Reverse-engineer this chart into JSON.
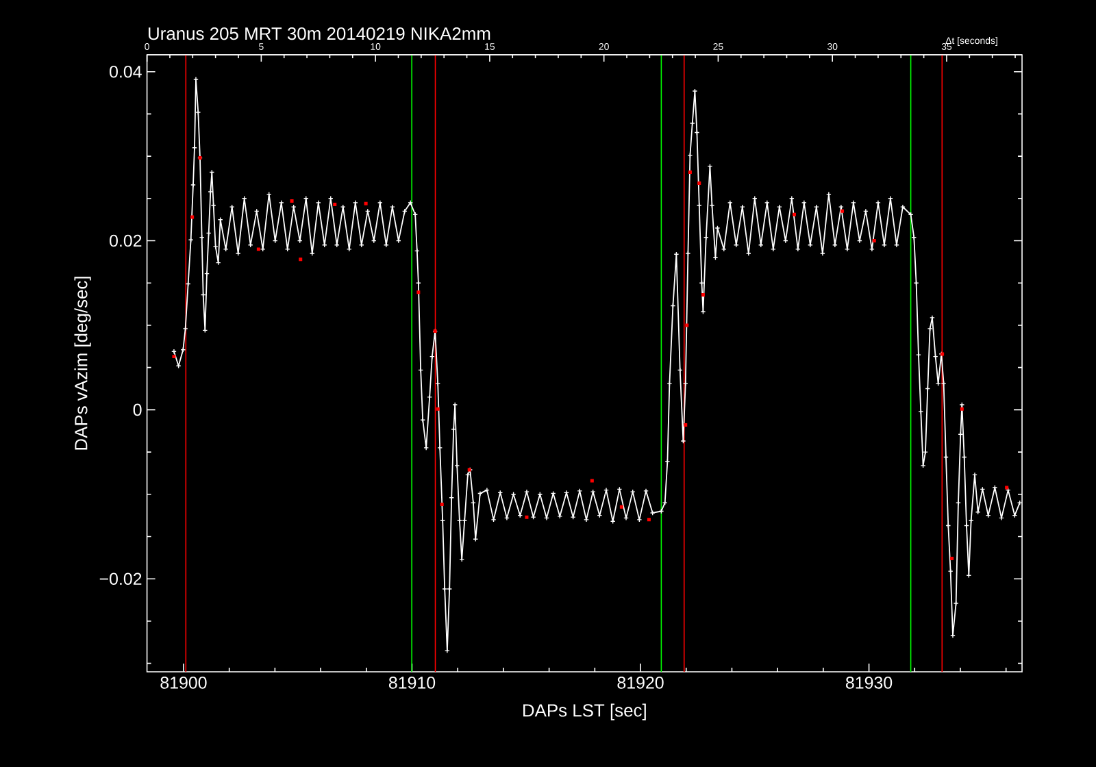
{
  "chart_data": {
    "type": "line",
    "title": "Uranus 205 MRT 30m 20140219 NIKA2mm",
    "xlabel": "DAPs LST [sec]",
    "ylabel": "DAPs vAzim [deg/sec]",
    "x2label": "Δt [seconds]",
    "xlim": [
      81898.4,
      81936.7
    ],
    "xticks": [
      {
        "value": 81900,
        "label": "81900"
      },
      {
        "value": 81902,
        "label": null
      },
      {
        "value": 81904,
        "label": null
      },
      {
        "value": 81906,
        "label": null
      },
      {
        "value": 81908,
        "label": null
      },
      81910,
      {
        "value": 81912,
        "label": null
      },
      {
        "value": 81914,
        "label": null
      },
      {
        "value": 81916,
        "label": null
      },
      {
        "value": 81918,
        "label": null
      },
      81920,
      {
        "value": 81922,
        "label": null
      },
      {
        "value": 81924,
        "label": null
      },
      {
        "value": 81926,
        "label": null
      },
      {
        "value": 81928,
        "label": null
      },
      81930,
      {
        "value": 81932,
        "label": null
      },
      {
        "value": 81934,
        "label": null
      },
      {
        "value": 81936,
        "label": null
      }
    ],
    "ylim": [
      -0.031,
      0.042
    ],
    "yticks": [
      {
        "value": -0.03,
        "label": null
      },
      {
        "value": -0.025,
        "label": null
      },
      {
        "value": -0.02,
        "label": "−0.02"
      },
      {
        "value": -0.015,
        "label": null
      },
      {
        "value": -0.01,
        "label": null
      },
      {
        "value": -0.005,
        "label": null
      },
      0,
      {
        "value": 0.005,
        "label": null
      },
      {
        "value": 0.01,
        "label": null
      },
      {
        "value": 0.015,
        "label": null
      },
      0.02,
      {
        "value": 0.025,
        "label": null
      },
      {
        "value": 0.03,
        "label": null
      },
      {
        "value": 0.035,
        "label": null
      },
      0.04
    ],
    "x2lim": [
      0,
      38.3
    ],
    "x2ticks": [
      0,
      {
        "value": 1,
        "label": null
      },
      {
        "value": 2,
        "label": null
      },
      {
        "value": 3,
        "label": null
      },
      {
        "value": 4,
        "label": null
      },
      5,
      {
        "value": 6,
        "label": null
      },
      {
        "value": 7,
        "label": null
      },
      {
        "value": 8,
        "label": null
      },
      {
        "value": 9,
        "label": null
      },
      10,
      {
        "value": 11,
        "label": null
      },
      {
        "value": 12,
        "label": null
      },
      {
        "value": 13,
        "label": null
      },
      {
        "value": 14,
        "label": null
      },
      15,
      {
        "value": 16,
        "label": null
      },
      {
        "value": 17,
        "label": null
      },
      {
        "value": 18,
        "label": null
      },
      {
        "value": 19,
        "label": null
      },
      20,
      {
        "value": 21,
        "label": null
      },
      {
        "value": 22,
        "label": null
      },
      {
        "value": 23,
        "label": null
      },
      {
        "value": 24,
        "label": null
      },
      25,
      {
        "value": 26,
        "label": null
      },
      {
        "value": 27,
        "label": null
      },
      {
        "value": 28,
        "label": null
      },
      {
        "value": 29,
        "label": null
      },
      30,
      {
        "value": 31,
        "label": null
      },
      {
        "value": 32,
        "label": null
      },
      {
        "value": 33,
        "label": null
      },
      {
        "value": 34,
        "label": null
      },
      35,
      {
        "value": 36,
        "label": null
      },
      {
        "value": 37,
        "label": null
      },
      {
        "value": 38,
        "label": null
      }
    ],
    "ref_lines": [
      {
        "axis": "x",
        "value": 81900.1,
        "color": "#ff0000"
      },
      {
        "axis": "x",
        "value": 81911.02,
        "color": "#ff0000"
      },
      {
        "axis": "x",
        "value": 81921.91,
        "color": "#ff0000"
      },
      {
        "axis": "x",
        "value": 81933.2,
        "color": "#ff0000"
      },
      {
        "axis": "x",
        "value": 81909.99,
        "color": "#00ff00"
      },
      {
        "axis": "x",
        "value": 81920.91,
        "color": "#00ff00"
      },
      {
        "axis": "x",
        "value": 81931.83,
        "color": "#00ff00"
      }
    ],
    "series": [
      {
        "color": "#ffffff",
        "marker": "cross",
        "x": [
          81899.58,
          81899.78,
          81899.98,
          81900.08,
          81900.2,
          81900.32,
          81900.42,
          81900.48,
          81900.54,
          81900.64,
          81900.72,
          81900.8,
          81900.86,
          81900.94,
          81901.02,
          81901.1,
          81901.18,
          81901.24,
          81901.31,
          81901.4,
          81901.52,
          81901.61,
          81901.85,
          81902.12,
          81902.39,
          81902.66,
          81902.93,
          81903.2,
          81903.47,
          81903.74,
          81904.01,
          81904.28,
          81904.55,
          81904.82,
          81905.09,
          81905.36,
          81905.63,
          81905.9,
          81906.17,
          81906.44,
          81906.71,
          81906.98,
          81907.25,
          81907.52,
          81907.79,
          81908.06,
          81908.33,
          81908.6,
          81908.87,
          81909.14,
          81909.41,
          81909.68,
          81909.93,
          81910.14,
          81910.22,
          81910.28,
          81910.38,
          81910.47,
          81910.62,
          81910.77,
          81910.88,
          81911.01,
          81911.13,
          81911.22,
          81911.34,
          81911.43,
          81911.54,
          81911.64,
          81911.73,
          81911.82,
          81911.88,
          81911.97,
          81912.08,
          81912.18,
          81912.3,
          81912.44,
          81912.54,
          81912.68,
          81912.78,
          81912.98,
          81913.28,
          81913.57,
          81913.86,
          81914.15,
          81914.44,
          81914.73,
          81915.02,
          81915.31,
          81915.6,
          81915.89,
          81916.18,
          81916.47,
          81916.76,
          81917.05,
          81917.34,
          81917.63,
          81917.92,
          81918.21,
          81918.5,
          81918.79,
          81919.08,
          81919.37,
          81919.66,
          81919.95,
          81920.24,
          81920.53,
          81920.91,
          81921.07,
          81921.18,
          81921.27,
          81921.42,
          81921.57,
          81921.73,
          81921.87,
          81921.97,
          81922.08,
          81922.17,
          81922.27,
          81922.38,
          81922.47,
          81922.57,
          81922.68,
          81922.74,
          81922.87,
          81923.04,
          81923.13,
          81923.28,
          81923.37,
          81923.65,
          81923.92,
          81924.19,
          81924.46,
          81924.73,
          81925.0,
          81925.27,
          81925.54,
          81925.81,
          81926.08,
          81926.35,
          81926.62,
          81926.89,
          81927.16,
          81927.43,
          81927.7,
          81927.97,
          81928.24,
          81928.51,
          81928.78,
          81929.05,
          81929.32,
          81929.59,
          81929.86,
          81930.13,
          81930.4,
          81930.67,
          81930.94,
          81931.21,
          81931.48,
          81931.83,
          81931.97,
          81932.07,
          81932.17,
          81932.27,
          81932.37,
          81932.47,
          81932.57,
          81932.67,
          81932.77,
          81932.91,
          81933.03,
          81933.17,
          81933.27,
          81933.37,
          81933.47,
          81933.57,
          81933.67,
          81933.81,
          81933.91,
          81934.01,
          81934.07,
          81934.17,
          81934.27,
          81934.37,
          81934.47,
          81934.63,
          81934.77,
          81934.97,
          81935.22,
          81935.51,
          81935.8,
          81936.09,
          81936.38,
          81936.6
        ],
        "values": [
          0.0069,
          0.0052,
          0.0071,
          0.0096,
          0.0149,
          0.0201,
          0.0266,
          0.031,
          0.0391,
          0.0352,
          0.0298,
          0.0204,
          0.0136,
          0.0094,
          0.0161,
          0.0209,
          0.0258,
          0.0281,
          0.0242,
          0.0193,
          0.0174,
          0.0225,
          0.019,
          0.024,
          0.0185,
          0.025,
          0.0195,
          0.0235,
          0.019,
          0.0255,
          0.02,
          0.0245,
          0.019,
          0.024,
          0.02,
          0.025,
          0.0185,
          0.0245,
          0.0195,
          0.025,
          0.0195,
          0.024,
          0.019,
          0.0245,
          0.0195,
          0.0235,
          0.02,
          0.0245,
          0.0195,
          0.024,
          0.02,
          0.0235,
          0.0245,
          0.0231,
          0.0188,
          0.015,
          0.0047,
          -0.0012,
          -0.0045,
          0.0015,
          0.0063,
          0.0093,
          0.0031,
          -0.0045,
          -0.0131,
          -0.0212,
          -0.0285,
          -0.0212,
          -0.0104,
          -0.0023,
          0.0006,
          -0.0066,
          -0.0131,
          -0.0177,
          -0.0131,
          -0.0077,
          -0.0071,
          -0.011,
          -0.0153,
          -0.0099,
          -0.0095,
          -0.013,
          -0.0098,
          -0.0128,
          -0.01,
          -0.0125,
          -0.0097,
          -0.0127,
          -0.01,
          -0.0128,
          -0.0099,
          -0.0126,
          -0.0098,
          -0.0127,
          -0.0096,
          -0.013,
          -0.0097,
          -0.0125,
          -0.0095,
          -0.0132,
          -0.0094,
          -0.0128,
          -0.0097,
          -0.013,
          -0.0096,
          -0.0122,
          -0.012,
          -0.011,
          -0.0061,
          0.0031,
          0.0123,
          0.0184,
          0.0047,
          -0.0037,
          0.0031,
          0.0185,
          0.0301,
          0.0339,
          0.0377,
          0.0328,
          0.0242,
          0.015,
          0.0116,
          0.0204,
          0.0288,
          0.0242,
          0.018,
          0.0215,
          0.019,
          0.0245,
          0.0195,
          0.024,
          0.0185,
          0.025,
          0.0195,
          0.0245,
          0.019,
          0.024,
          0.02,
          0.025,
          0.019,
          0.0245,
          0.0195,
          0.024,
          0.0185,
          0.0255,
          0.0195,
          0.024,
          0.019,
          0.0245,
          0.02,
          0.0235,
          0.019,
          0.0245,
          0.0195,
          0.025,
          0.0195,
          0.024,
          0.0231,
          0.0204,
          0.015,
          0.0065,
          -0.0002,
          -0.0066,
          -0.005,
          0.0025,
          0.0096,
          0.0109,
          0.0063,
          0.0031,
          0.0066,
          0.0031,
          -0.0056,
          -0.0137,
          -0.0191,
          -0.0267,
          -0.0229,
          -0.011,
          -0.0029,
          0.0006,
          -0.0056,
          -0.0137,
          -0.0196,
          -0.0131,
          -0.0077,
          -0.0121,
          -0.0094,
          -0.0125,
          -0.0092,
          -0.0128,
          -0.0095,
          -0.0125,
          -0.011
        ]
      },
      {
        "type": "scatter",
        "color": "#ff0000",
        "marker": "square",
        "x": [
          81899.58,
          81900.38,
          81900.72,
          81903.28,
          81904.74,
          81905.12,
          81906.62,
          81907.98,
          81910.28,
          81911.01,
          81911.13,
          81911.31,
          81912.51,
          81915.02,
          81917.88,
          81919.17,
          81920.37,
          81921.97,
          81922.03,
          81922.17,
          81922.57,
          81922.74,
          81926.73,
          81928.83,
          81930.23,
          81933.21,
          81933.63,
          81934.07,
          81936.03
        ],
        "values": [
          0.0063,
          0.0228,
          0.0298,
          0.019,
          0.0247,
          0.0178,
          0.0243,
          0.0244,
          0.0139,
          0.0093,
          0.0001,
          -0.0112,
          -0.0071,
          -0.0127,
          -0.0084,
          -0.0115,
          -0.013,
          -0.0018,
          0.01,
          0.0281,
          0.0268,
          0.0136,
          0.0231,
          0.0235,
          0.02,
          0.0066,
          -0.0176,
          0.0001,
          -0.0092
        ]
      }
    ]
  }
}
